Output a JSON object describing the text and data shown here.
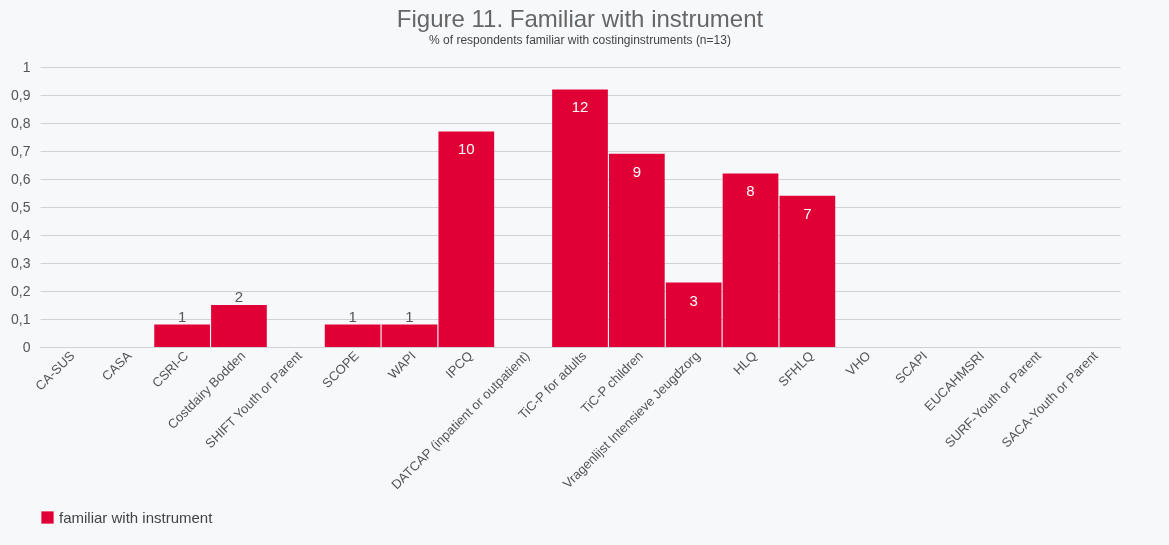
{
  "chart_data": {
    "type": "bar",
    "title": "Figure 11. Familiar with instrument",
    "subtitle": "% of respondents familiar with costinginstruments (n=13)",
    "categories": [
      "CA-SUS",
      "CASA",
      "CSRI-C",
      "Costdairy Bodden",
      "SHIFT Youth or Parent",
      "SCOPE",
      "WAPI",
      "IPCQ",
      "DATCAP (inpatient or outpatient)",
      "TiC-P for adults",
      "TiC-P children",
      "Vragenlijst Intensieve Jeugdzorg",
      "HLQ",
      "SFHLQ",
      "VHO",
      "SCAPI",
      "EUCAHMSRI",
      "SURF-Youth or Parent",
      "SACA-Youth or Parent"
    ],
    "series": [
      {
        "name": "familiar with instrument",
        "color": "#e10036",
        "values": [
          0,
          0,
          0.08,
          0.15,
          0,
          0.08,
          0.08,
          0.77,
          0,
          0.92,
          0.69,
          0.23,
          0.62,
          0.54,
          0,
          0,
          0,
          0,
          0
        ]
      }
    ],
    "value_labels": [
      null,
      null,
      "1",
      "2",
      null,
      "1",
      "1",
      "10",
      null,
      "12",
      "9",
      "3",
      "8",
      "7",
      null,
      null,
      null,
      null,
      null
    ],
    "ylim": [
      0,
      1
    ],
    "yticks": [
      0,
      {
        "value": 0.1,
        "label": "0,1"
      },
      {
        "value": 0.2,
        "label": "0,2"
      },
      {
        "value": 0.3,
        "label": "0,3"
      },
      {
        "value": 0.4,
        "label": "0,4"
      },
      {
        "value": 0.5,
        "label": "0,5"
      },
      {
        "value": 0.6,
        "label": "0,6"
      },
      {
        "value": 0.7,
        "label": "0,7"
      },
      {
        "value": 0.8,
        "label": "0,8"
      },
      {
        "value": 0.9,
        "label": "0,9"
      },
      1
    ],
    "grid": "y",
    "legend": "bottom"
  }
}
